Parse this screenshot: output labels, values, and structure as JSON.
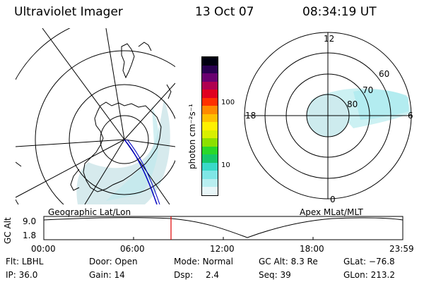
{
  "header": {
    "title": "Ultraviolet Imager",
    "date": "13 Oct 07",
    "time": "08:34:19 UT"
  },
  "colorbar": {
    "label": "photon cm⁻²s⁻¹",
    "tick_100": "100",
    "tick_10": "10",
    "colors": [
      "#e8f6f8",
      "#b8eef0",
      "#7fe6e6",
      "#3ad9c8",
      "#16c86a",
      "#2ad82a",
      "#8ce000",
      "#d8f000",
      "#fff000",
      "#ffc000",
      "#ff8a00",
      "#ff3000",
      "#e00020",
      "#b00050",
      "#6a0070",
      "#2a0050",
      "#000010"
    ]
  },
  "geo_panel": {
    "label": "Geographic Lat/Lon"
  },
  "apex_panel": {
    "label": "Apex MLat/MLT",
    "mlt_12": "12",
    "mlt_18": "18",
    "mlt_6": "6",
    "mlt_0": "0",
    "lat_60": "60",
    "lat_70": "70",
    "lat_80": "80"
  },
  "orbit_plot": {
    "ylabel": "GC Alt",
    "ytick_top": "9.0",
    "ytick_bottom": "1.8",
    "xticks": [
      "00:00",
      "06:00",
      "12:00",
      "18:00",
      "23:59"
    ],
    "current_time_marker_color": "#e00000"
  },
  "info": {
    "flt_label": "Flt:",
    "flt_value": "LBHL",
    "ip_label": "IP:",
    "ip_value": "36.0",
    "door_label": "Door:",
    "door_value": "Open",
    "gain_label": "Gain:",
    "gain_value": "14",
    "mode_label": "Mode:",
    "mode_value": "Normal",
    "dsp_label": "Dsp:",
    "dsp_value": "2.4",
    "gcalt_label": "GC Alt:",
    "gcalt_value": "8.3 Re",
    "seq_label": "Seq:",
    "seq_value": "39",
    "glat_label": "GLat:",
    "glat_value": "−76.8",
    "glon_label": "GLon:",
    "glon_value": "213.2"
  }
}
